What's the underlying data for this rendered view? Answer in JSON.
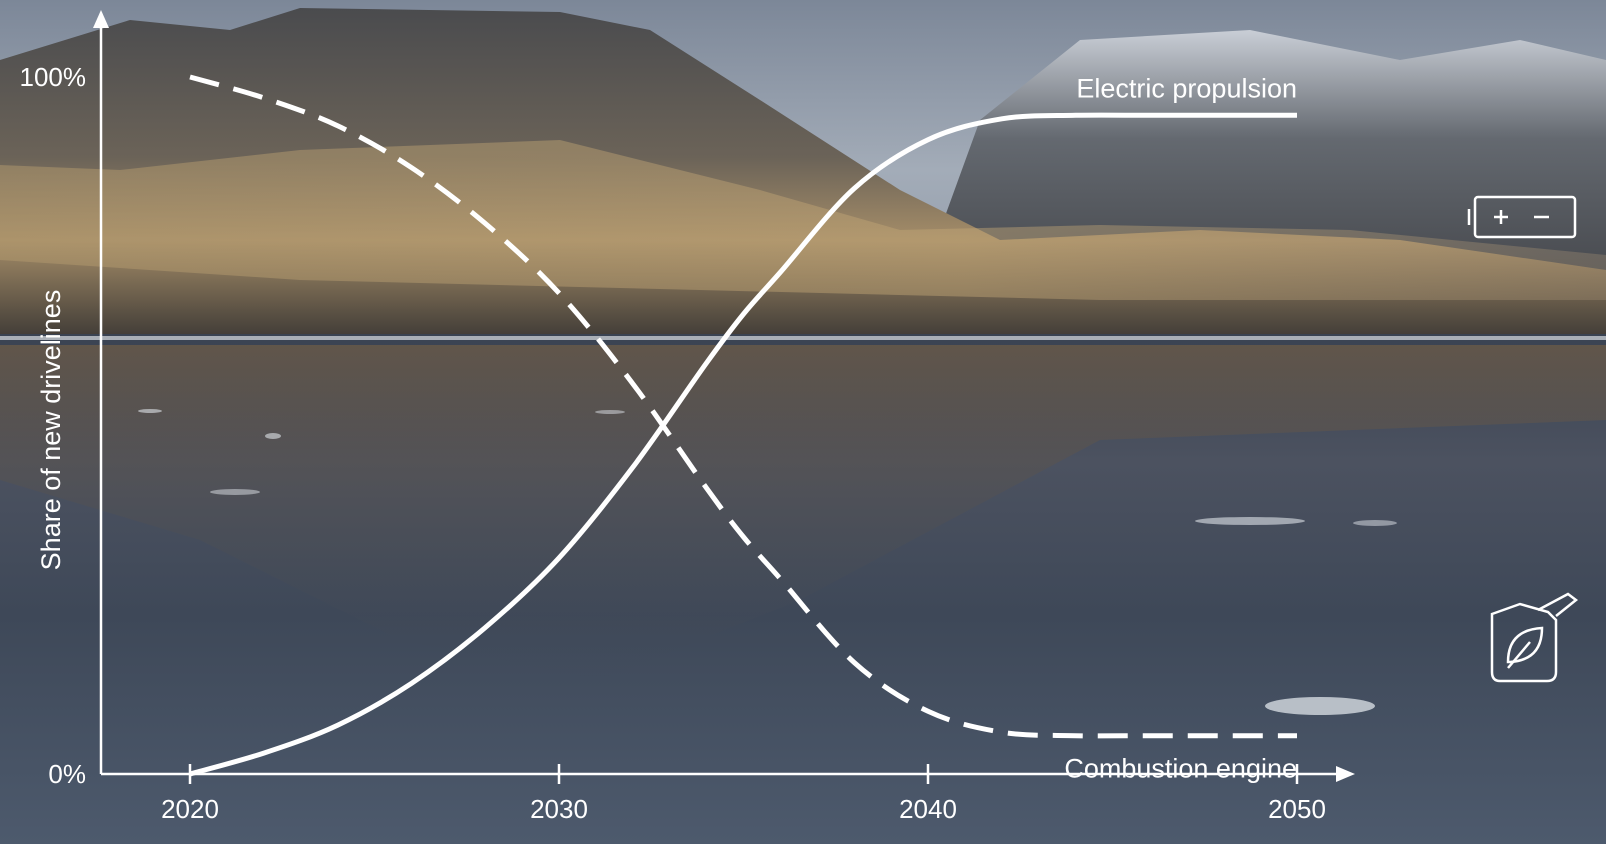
{
  "chart_data": {
    "type": "line",
    "x_ticks": [
      2020,
      2030,
      2040,
      2050
    ],
    "xlim": [
      2020,
      2050
    ],
    "ylim": [
      0,
      100
    ],
    "y_ticks": [
      {
        "value": 0,
        "label": "0%"
      },
      {
        "value": 100,
        "label": "100%"
      }
    ],
    "ylabel": "Share of new drivelines",
    "xlabel": "",
    "grid": false,
    "series": [
      {
        "name": "Electric propulsion",
        "style": "solid",
        "x": [
          2020,
          2022,
          2024,
          2026,
          2028,
          2030,
          2032,
          2034,
          2035,
          2036,
          2038,
          2040,
          2042,
          2044,
          2046,
          2048,
          2050
        ],
        "y": [
          0,
          3,
          7,
          13,
          21,
          31,
          44,
          59,
          66,
          72,
          84,
          91,
          94,
          94.5,
          94.5,
          94.5,
          94.5
        ]
      },
      {
        "name": "Combustion engine",
        "style": "dashed",
        "x": [
          2020,
          2022,
          2024,
          2026,
          2028,
          2030,
          2032,
          2034,
          2035,
          2036,
          2038,
          2040,
          2042,
          2044,
          2046,
          2048,
          2050
        ],
        "y": [
          100,
          97,
          93,
          87,
          79,
          69,
          56,
          41,
          34,
          28,
          16,
          9,
          6,
          5.5,
          5.5,
          5.5,
          5.5
        ]
      }
    ]
  },
  "colors": {
    "lines": "#ffffff",
    "sky": "#8e99a8",
    "water": "#3e4a5b"
  },
  "icons": [
    "battery-icon",
    "fuel-can-leaf-icon"
  ]
}
